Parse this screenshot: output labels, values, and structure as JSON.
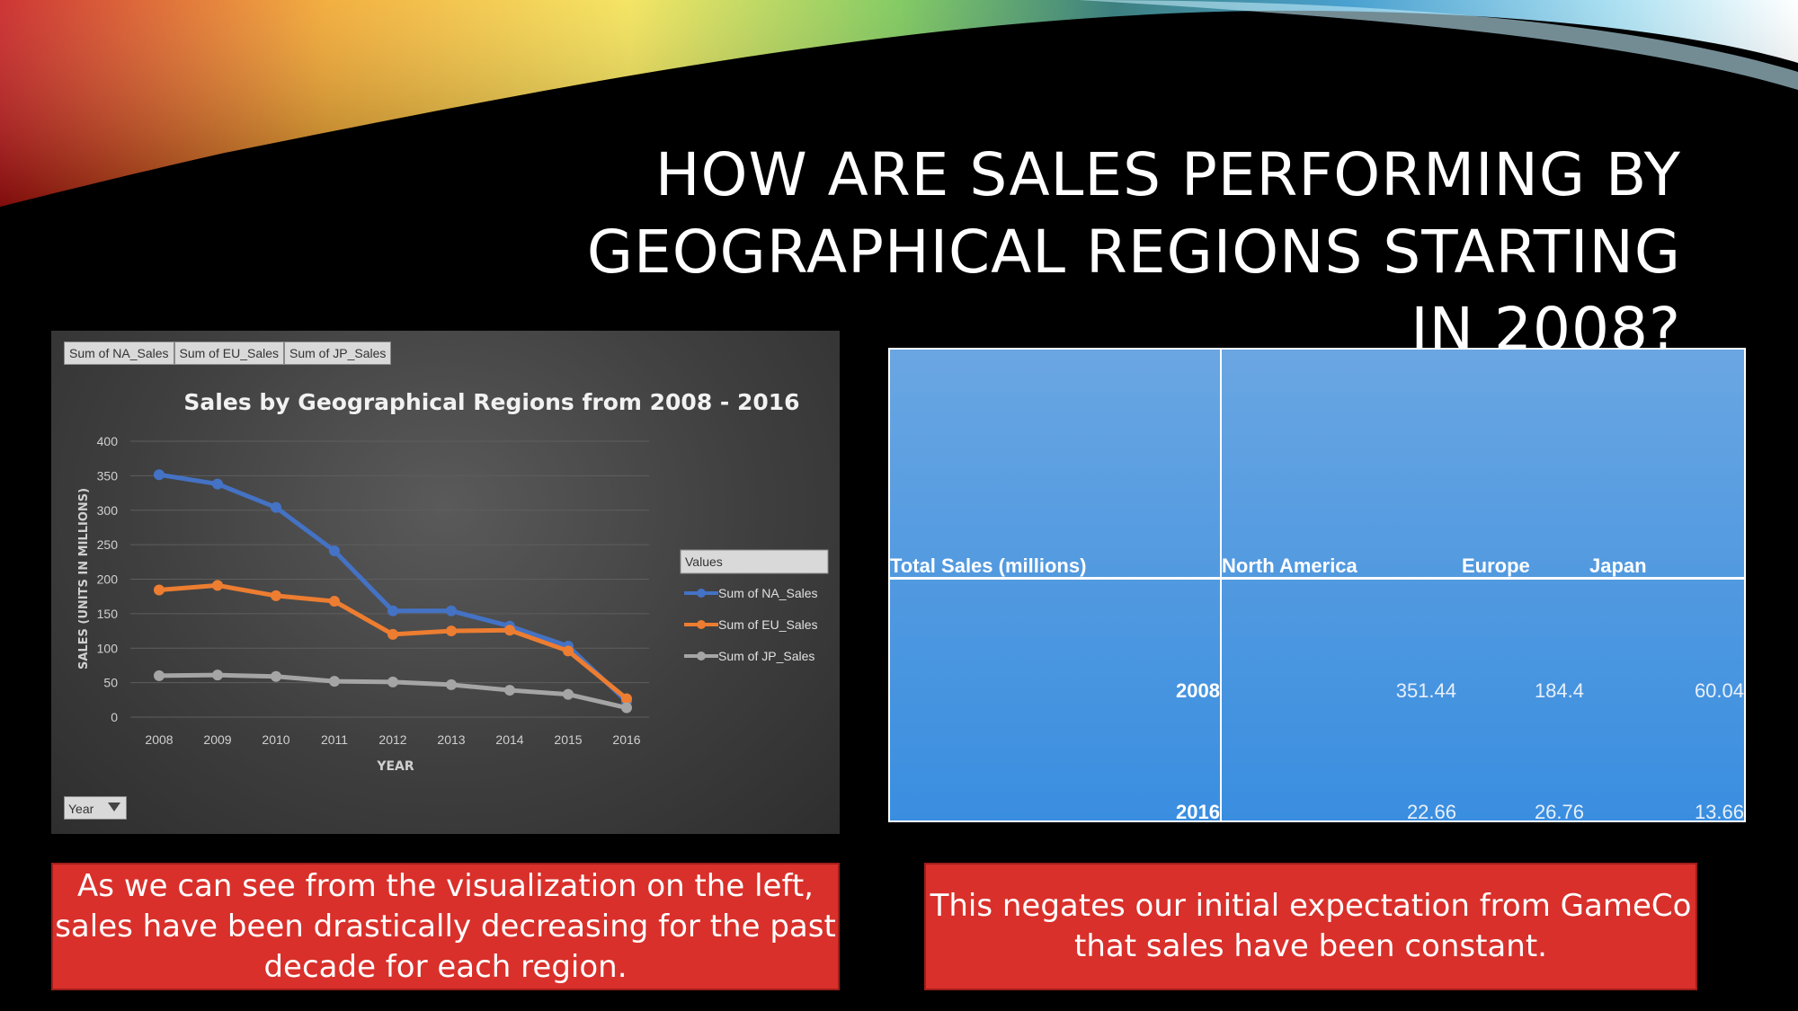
{
  "slide": {
    "title_lines": [
      "HOW ARE SALES PERFORMING BY",
      "GEOGRAPHICAL REGIONS STARTING",
      "IN 2008?"
    ]
  },
  "pivot_buttons": [
    "Sum of NA_Sales",
    "Sum of EU_Sales",
    "Sum of JP_Sales"
  ],
  "year_filter": {
    "label": "Year"
  },
  "chart_data": {
    "type": "line",
    "title": "Sales by Geographical Regions from 2008 - 2016",
    "xlabel": "YEAR",
    "ylabel": "SALES (UNITS IN MILLIONS)",
    "x": [
      "2008",
      "2009",
      "2010",
      "2011",
      "2012",
      "2013",
      "2014",
      "2015",
      "2016"
    ],
    "ylim": [
      0,
      400
    ],
    "yticks": [
      0,
      50,
      100,
      150,
      200,
      250,
      300,
      350,
      400
    ],
    "legend_title": "Values",
    "legend_position": "right",
    "grid": true,
    "series": [
      {
        "name": "Sum of NA_Sales",
        "color": "#4472c4",
        "values": [
          351.44,
          338,
          304,
          241,
          154,
          154,
          132,
          103,
          22.66
        ]
      },
      {
        "name": "Sum of EU_Sales",
        "color": "#ed7d31",
        "values": [
          184.4,
          191,
          176,
          168,
          120,
          125,
          126,
          96,
          26.76
        ]
      },
      {
        "name": "Sum of JP_Sales",
        "color": "#a5a5a5",
        "values": [
          60.04,
          61,
          59,
          52,
          51,
          47,
          39,
          33,
          13.66
        ]
      }
    ]
  },
  "table": {
    "header": {
      "corner": "Total Sales (millions)",
      "na": "North America",
      "eu": "Europe",
      "jp": "Japan"
    },
    "rows": [
      {
        "year": "2008",
        "na": "351.44",
        "eu": "184.4",
        "jp": "60.04"
      },
      {
        "year": "2016",
        "na": "22.66",
        "eu": "26.76",
        "jp": "13.66"
      }
    ]
  },
  "notes": {
    "left": "As we can see from the visualization on the left, sales have been drastically decreasing for the past decade for each region.",
    "right": "This negates our initial expectation from GameCo that sales have been constant."
  }
}
